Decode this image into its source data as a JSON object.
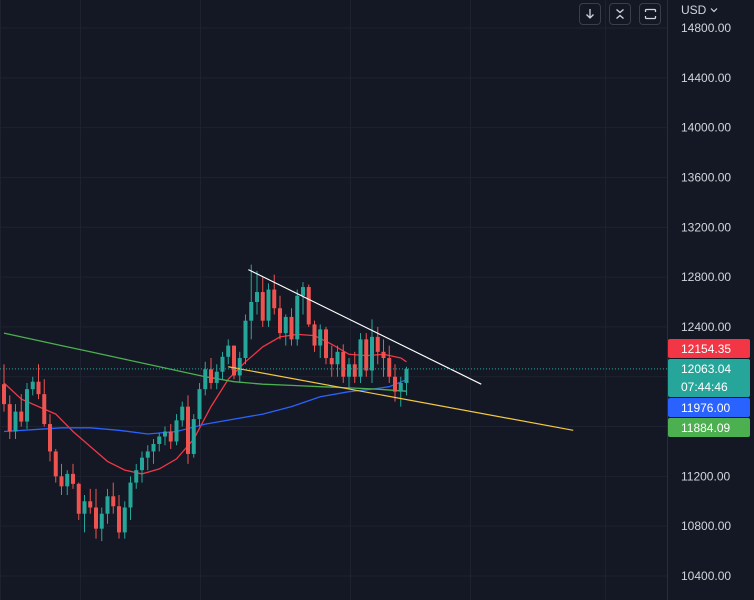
{
  "toolbar": {
    "buttons": [
      {
        "name": "scroll-down-button",
        "icon": "arrow-down-icon"
      },
      {
        "name": "collapse-button",
        "icon": "collapse-arrows-icon"
      },
      {
        "name": "fullscreen-button",
        "icon": "frame-corners-icon"
      }
    ],
    "currency_label": "USD",
    "currency_icon": "chevron-down-icon"
  },
  "colors": {
    "background": "#141824",
    "grid": "#1e2230",
    "candle_up": "#26a69a",
    "candle_down": "#ef5350",
    "ma_red": "#f23645",
    "ma_blue": "#2962ff",
    "ma_green": "#4caf50",
    "trendline_white": "#ffffff",
    "trendline_yellow": "#f5c842"
  },
  "chart_data": {
    "type": "candlestick",
    "title": "",
    "xlabel": "",
    "ylabel": "",
    "y_axis": {
      "currency": "USD",
      "ticks": [
        14800,
        14400,
        14000,
        13600,
        13200,
        12800,
        12400,
        12000,
        11600,
        11200,
        10800,
        10400
      ],
      "tick_labels": [
        "14800.00",
        "14400.00",
        "14000.00",
        "13600.00",
        "13200.00",
        "12800.00",
        "12400.00",
        "",
        "",
        "11200.00",
        "10800.00",
        "10400.00"
      ],
      "range": [
        10350,
        14830
      ]
    },
    "grid": true,
    "candles": [
      [
        11940,
        12100,
        11720,
        11780
      ],
      [
        11780,
        11850,
        11500,
        11560
      ],
      [
        11560,
        11780,
        11500,
        11720
      ],
      [
        11720,
        11860,
        11600,
        11640
      ],
      [
        11640,
        11950,
        11580,
        11900
      ],
      [
        11900,
        12000,
        11850,
        11960
      ],
      [
        11960,
        12100,
        11820,
        11860
      ],
      [
        11860,
        11980,
        11600,
        11620
      ],
      [
        11620,
        11700,
        11320,
        11400
      ],
      [
        11400,
        11420,
        11150,
        11200
      ],
      [
        11200,
        11300,
        11050,
        11120
      ],
      [
        11120,
        11250,
        11050,
        11220
      ],
      [
        11220,
        11300,
        11100,
        11140
      ],
      [
        11140,
        11150,
        10850,
        10900
      ],
      [
        10900,
        11050,
        10750,
        11000
      ],
      [
        11000,
        11100,
        10900,
        10950
      ],
      [
        10950,
        11100,
        10700,
        10780
      ],
      [
        10780,
        10950,
        10680,
        10900
      ],
      [
        10900,
        11100,
        10820,
        11040
      ],
      [
        11040,
        11150,
        10900,
        10960
      ],
      [
        10960,
        11050,
        10700,
        10750
      ],
      [
        10750,
        11000,
        10700,
        10950
      ],
      [
        10950,
        11200,
        10850,
        11150
      ],
      [
        11150,
        11300,
        11100,
        11250
      ],
      [
        11250,
        11400,
        11150,
        11350
      ],
      [
        11350,
        11450,
        11250,
        11400
      ],
      [
        11400,
        11500,
        11300,
        11460
      ],
      [
        11460,
        11550,
        11400,
        11520
      ],
      [
        11520,
        11600,
        11450,
        11560
      ],
      [
        11560,
        11620,
        11420,
        11480
      ],
      [
        11480,
        11700,
        11450,
        11650
      ],
      [
        11650,
        11800,
        11600,
        11760
      ],
      [
        11760,
        11850,
        11300,
        11380
      ],
      [
        11380,
        11700,
        11350,
        11660
      ],
      [
        11660,
        11950,
        11600,
        11900
      ],
      [
        11900,
        12120,
        11850,
        12060
      ],
      [
        12060,
        12150,
        11900,
        11950
      ],
      [
        11950,
        12100,
        11900,
        12040
      ],
      [
        12040,
        12200,
        11980,
        12160
      ],
      [
        12160,
        12300,
        12100,
        12250
      ],
      [
        12250,
        12250,
        11980,
        12010
      ],
      [
        12010,
        12200,
        11950,
        12150
      ],
      [
        12150,
        12500,
        12100,
        12450
      ],
      [
        12450,
        12900,
        12300,
        12600
      ],
      [
        12600,
        12850,
        12500,
        12680
      ],
      [
        12680,
        12800,
        12400,
        12450
      ],
      [
        12450,
        12750,
        12400,
        12700
      ],
      [
        12700,
        12820,
        12500,
        12550
      ],
      [
        12550,
        12650,
        12300,
        12350
      ],
      [
        12350,
        12500,
        12250,
        12480
      ],
      [
        12480,
        12550,
        12250,
        12300
      ],
      [
        12300,
        12700,
        12250,
        12650
      ],
      [
        12650,
        12760,
        12500,
        12720
      ],
      [
        12720,
        12740,
        12400,
        12420
      ],
      [
        12420,
        12450,
        12200,
        12250
      ],
      [
        12250,
        12420,
        12150,
        12380
      ],
      [
        12380,
        12400,
        12100,
        12150
      ],
      [
        12150,
        12250,
        12000,
        12100
      ],
      [
        12100,
        12250,
        12000,
        12200
      ],
      [
        12200,
        12260,
        11950,
        12000
      ],
      [
        12000,
        12150,
        11900,
        12100
      ],
      [
        12100,
        12200,
        11950,
        12000
      ],
      [
        12000,
        12350,
        11950,
        12300
      ],
      [
        12300,
        12350,
        12000,
        12050
      ],
      [
        12050,
        12460,
        11950,
        12320
      ],
      [
        12320,
        12400,
        12100,
        12200
      ],
      [
        12200,
        12300,
        12000,
        12150
      ],
      [
        12150,
        12250,
        11950,
        12000
      ],
      [
        12000,
        12100,
        11800,
        11880
      ],
      [
        11880,
        12000,
        11760,
        11950
      ],
      [
        11950,
        12080,
        11850,
        12063
      ]
    ],
    "series": [
      {
        "type": "line",
        "color": "#f23645",
        "points": [
          [
            0,
            11950
          ],
          [
            3,
            11820
          ],
          [
            6,
            11760
          ],
          [
            9,
            11700
          ],
          [
            12,
            11560
          ],
          [
            15,
            11440
          ],
          [
            18,
            11320
          ],
          [
            21,
            11250
          ],
          [
            24,
            11220
          ],
          [
            27,
            11260
          ],
          [
            30,
            11340
          ],
          [
            33,
            11500
          ],
          [
            36,
            11760
          ],
          [
            39,
            11980
          ],
          [
            42,
            12120
          ],
          [
            45,
            12240
          ],
          [
            48,
            12320
          ],
          [
            51,
            12340
          ],
          [
            54,
            12330
          ],
          [
            57,
            12260
          ],
          [
            60,
            12180
          ],
          [
            63,
            12170
          ],
          [
            66,
            12180
          ],
          [
            69,
            12150
          ],
          [
            70,
            12120
          ]
        ]
      },
      {
        "type": "line",
        "color": "#2962ff",
        "points": [
          [
            0,
            11560
          ],
          [
            5,
            11575
          ],
          [
            10,
            11590
          ],
          [
            15,
            11590
          ],
          [
            20,
            11570
          ],
          [
            25,
            11540
          ],
          [
            30,
            11560
          ],
          [
            35,
            11620
          ],
          [
            40,
            11660
          ],
          [
            45,
            11700
          ],
          [
            50,
            11760
          ],
          [
            55,
            11840
          ],
          [
            60,
            11880
          ],
          [
            64,
            11900
          ],
          [
            67,
            11920
          ],
          [
            70,
            11976
          ]
        ]
      },
      {
        "type": "line",
        "color": "#4caf50",
        "points": [
          [
            0,
            12350
          ],
          [
            5,
            12300
          ],
          [
            10,
            12250
          ],
          [
            15,
            12200
          ],
          [
            20,
            12150
          ],
          [
            25,
            12100
          ],
          [
            30,
            12050
          ],
          [
            35,
            12000
          ],
          [
            40,
            11960
          ],
          [
            45,
            11940
          ],
          [
            50,
            11930
          ],
          [
            55,
            11920
          ],
          [
            60,
            11910
          ],
          [
            65,
            11900
          ],
          [
            70,
            11884
          ]
        ]
      }
    ],
    "trendlines": [
      {
        "color": "#ffffff",
        "from": [
          42.5,
          12860
        ],
        "to": [
          83,
          11940
        ]
      },
      {
        "color": "#f5c842",
        "from": [
          39,
          12080
        ],
        "to": [
          99,
          11570
        ]
      }
    ],
    "price_tags": [
      {
        "label": "12154.35",
        "value": 12154.35,
        "color": "#f23645"
      },
      {
        "label": "12063.04",
        "value": 12063.04,
        "color": "#26a69a",
        "countdown": "07:44:46"
      },
      {
        "label": "11976.00",
        "value": 11976.0,
        "color": "#2962ff"
      },
      {
        "label": "11884.09",
        "value": 11884.09,
        "color": "#4caf50"
      }
    ],
    "last_price": 12063.04
  }
}
